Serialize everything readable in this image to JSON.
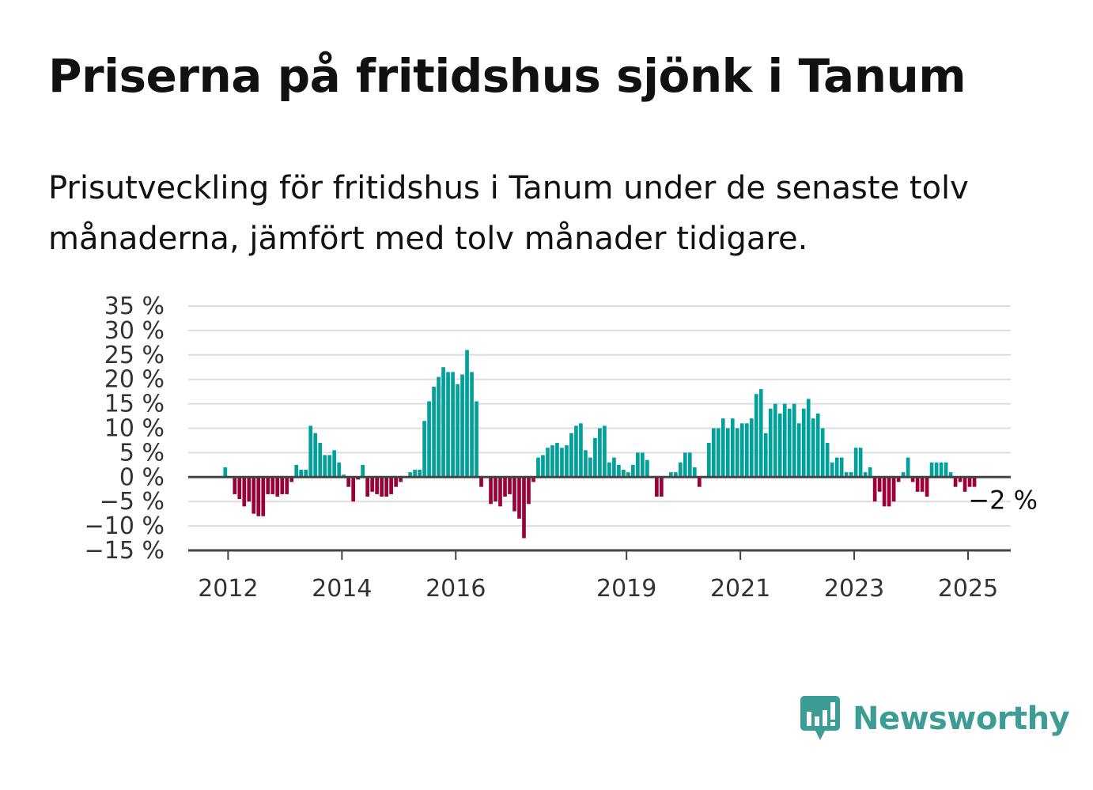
{
  "title": "Priserna på fritidshus sjönk i Tanum",
  "subtitle": "Prisutveckling för fritidshus i Tanum under de senaste tolv månaderna, jämfört med tolv månader tidigare.",
  "brand": {
    "name": "Newsworthy",
    "icon": "newsworthy-logo-icon",
    "color": "#3d9d95"
  },
  "colors": {
    "positive": "#00a19a",
    "negative": "#9b0039",
    "grid": "#dddddd",
    "axis": "#444444"
  },
  "chart_data": {
    "type": "bar",
    "ylim": [
      -15,
      35
    ],
    "yticks": [
      "35 %",
      "30 %",
      "25 %",
      "20 %",
      "15 %",
      "10 %",
      "5 %",
      "0 %",
      "−5 %",
      "−10 %",
      "−15 %"
    ],
    "ytick_values": [
      35,
      30,
      25,
      20,
      15,
      10,
      5,
      0,
      -5,
      -10,
      -15
    ],
    "xticks": [
      {
        "label": "2012",
        "x": 2012
      },
      {
        "label": "2014",
        "x": 2014
      },
      {
        "label": "2016",
        "x": 2016
      },
      {
        "label": "2019",
        "x": 2019
      },
      {
        "label": "2021",
        "x": 2021
      },
      {
        "label": "2023",
        "x": 2023
      },
      {
        "label": "2025",
        "x": 2025
      }
    ],
    "x_start": 2011.95,
    "month_step": 0.0833,
    "xlim": [
      2011.3,
      2025.75
    ],
    "grid": true,
    "legend": "none",
    "annotation": {
      "text": "−2 %",
      "month_index": 163
    },
    "values": [
      2,
      0,
      -3.5,
      -4.5,
      -6,
      -5,
      -7.5,
      -8,
      -8,
      -3.5,
      -3.5,
      -4,
      -3.5,
      -3.5,
      -1,
      2.5,
      1.5,
      1.5,
      10.5,
      9,
      7,
      4.5,
      4.5,
      5.5,
      3,
      0.5,
      -2,
      -5,
      -0.5,
      2.5,
      -4,
      -3,
      -3.5,
      -4,
      -4,
      -3.5,
      -2,
      -1,
      0,
      1,
      1.5,
      1.5,
      11.5,
      15.5,
      18.5,
      20.5,
      22.5,
      21.5,
      21.5,
      19,
      21,
      26,
      21.5,
      15.5,
      -2,
      0,
      -5.5,
      -5,
      -6,
      -4,
      -3.5,
      -7,
      -8.5,
      -12.5,
      -5.5,
      -1,
      4,
      4.5,
      6,
      6.5,
      7,
      6,
      6.5,
      9,
      10.5,
      11,
      5.5,
      4,
      8,
      10,
      10.5,
      3,
      4,
      2.5,
      1.5,
      1,
      2.5,
      5,
      5,
      3.5,
      0,
      -4,
      -4,
      0,
      1,
      1,
      3,
      5,
      5,
      2,
      -2,
      0,
      7,
      10,
      10,
      12,
      10,
      12,
      10,
      11,
      11,
      12,
      17,
      18,
      9,
      14,
      15,
      13,
      15,
      14,
      15,
      11,
      14,
      16,
      12,
      13,
      10,
      7,
      3,
      4,
      4,
      1,
      1,
      6,
      6,
      1,
      2,
      -5,
      -3,
      -6,
      -6,
      -5,
      -1,
      1,
      4,
      -1,
      -3,
      -3,
      -4,
      3,
      3,
      3,
      3,
      1,
      -2,
      -1,
      -3,
      -2,
      -2
    ]
  }
}
